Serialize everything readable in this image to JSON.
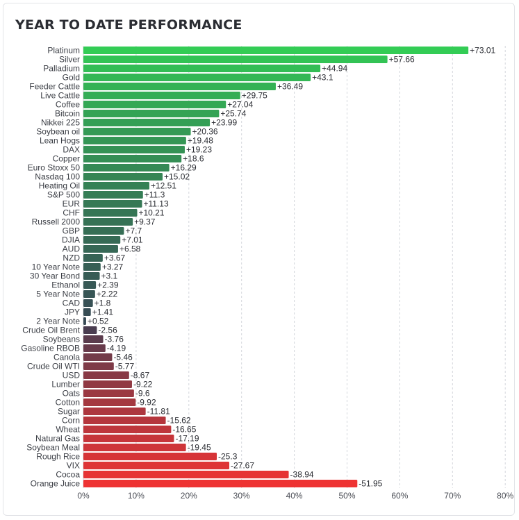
{
  "header": {
    "title": "YEAR TO DATE PERFORMANCE"
  },
  "chart_data": {
    "type": "bar",
    "orientation": "horizontal",
    "title": "YEAR TO DATE PERFORMANCE",
    "xlabel": "",
    "ylabel": "",
    "xlim": [
      0,
      80
    ],
    "x_ticks": [
      0,
      10,
      20,
      30,
      40,
      50,
      60,
      70,
      80
    ],
    "x_tick_labels": [
      "0%",
      "10%",
      "20%",
      "30%",
      "40%",
      "50%",
      "60%",
      "70%",
      "80%"
    ],
    "bar_length": "absolute value",
    "grid": "vertical dashed",
    "legend": "none",
    "colors": {
      "positive_strong": "#33cc55",
      "positive_weak": "#374a55",
      "negative_weak": "#4a3d50",
      "negative_strong": "#ee3333"
    },
    "categories": [
      "Platinum",
      "Silver",
      "Palladium",
      "Gold",
      "Feeder Cattle",
      "Live Cattle",
      "Coffee",
      "Bitcoin",
      "Nikkei 225",
      "Soybean oil",
      "Lean Hogs",
      "DAX",
      "Copper",
      "Euro Stoxx 50",
      "Nasdaq 100",
      "Heating Oil",
      "S&P 500",
      "EUR",
      "CHF",
      "Russell 2000",
      "GBP",
      "DJIA",
      "AUD",
      "NZD",
      "10 Year Note",
      "30 Year Bond",
      "Ethanol",
      "5 Year Note",
      "CAD",
      "JPY",
      "2 Year Note",
      "Crude Oil Brent",
      "Soybeans",
      "Gasoline RBOB",
      "Canola",
      "Crude Oil WTI",
      "USD",
      "Lumber",
      "Oats",
      "Cotton",
      "Sugar",
      "Corn",
      "Wheat",
      "Natural Gas",
      "Soybean Meal",
      "Rough Rice",
      "VIX",
      "Cocoa",
      "Orange Juice"
    ],
    "values": [
      73.01,
      57.66,
      44.94,
      43.1,
      36.49,
      29.75,
      27.04,
      25.74,
      23.99,
      20.36,
      19.48,
      19.23,
      18.6,
      16.29,
      15.02,
      12.51,
      11.3,
      11.13,
      10.21,
      9.37,
      7.7,
      7.01,
      6.58,
      3.67,
      3.27,
      3.1,
      2.39,
      2.22,
      1.8,
      1.41,
      0.52,
      -2.56,
      -3.76,
      -4.19,
      -5.46,
      -5.77,
      -8.67,
      -9.22,
      -9.6,
      -9.92,
      -11.81,
      -15.62,
      -16.65,
      -17.19,
      -19.45,
      -25.3,
      -27.67,
      -38.94,
      -51.95
    ],
    "value_labels": [
      "+73.01",
      "+57.66",
      "+44.94",
      "+43.1",
      "+36.49",
      "+29.75",
      "+27.04",
      "+25.74",
      "+23.99",
      "+20.36",
      "+19.48",
      "+19.23",
      "+18.6",
      "+16.29",
      "+15.02",
      "+12.51",
      "+11.3",
      "+11.13",
      "+10.21",
      "+9.37",
      "+7.7",
      "+7.01",
      "+6.58",
      "+3.67",
      "+3.27",
      "+3.1",
      "+2.39",
      "+2.22",
      "+1.8",
      "+1.41",
      "+0.52",
      "-2.56",
      "-3.76",
      "-4.19",
      "-5.46",
      "-5.77",
      "-8.67",
      "-9.22",
      "-9.6",
      "-9.92",
      "-11.81",
      "-15.62",
      "-16.65",
      "-17.19",
      "-19.45",
      "-25.3",
      "-27.67",
      "-38.94",
      "-51.95"
    ]
  }
}
